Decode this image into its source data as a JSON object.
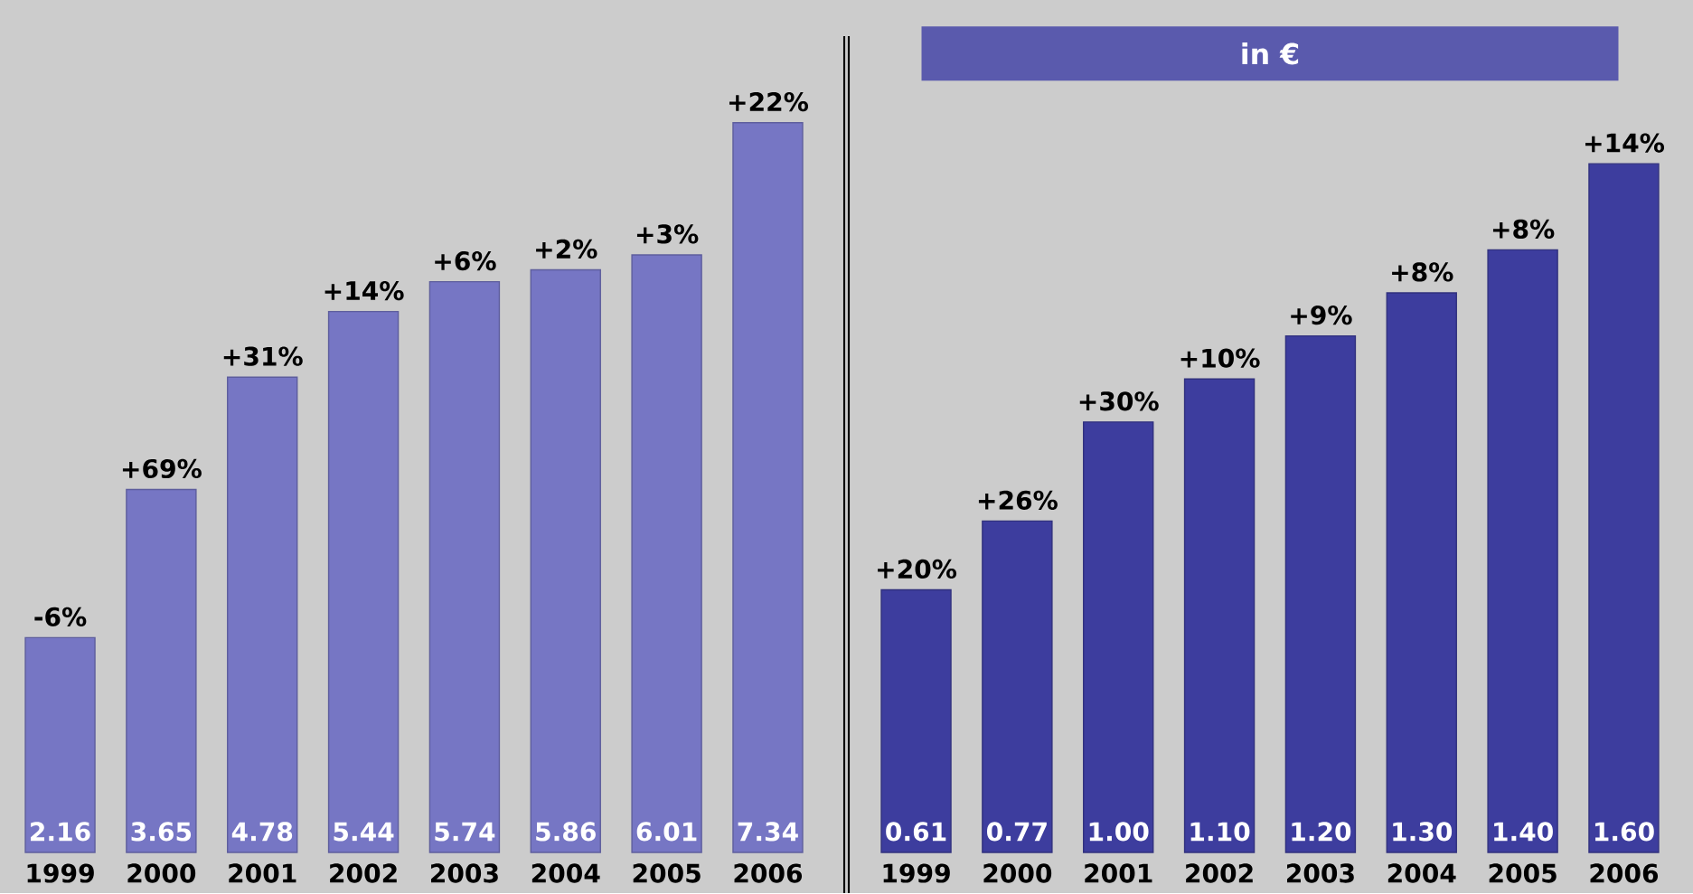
{
  "chart_data": [
    {
      "type": "bar",
      "categories": [
        "1999",
        "2000",
        "2001",
        "2002",
        "2003",
        "2004",
        "2005",
        "2006"
      ],
      "values": [
        2.16,
        3.65,
        4.78,
        5.44,
        5.74,
        5.86,
        6.01,
        7.34
      ],
      "color": "#7676c4",
      "value_labels": [
        "2.16",
        "3.65",
        "4.78",
        "5.44",
        "5.74",
        "5.86",
        "6.01",
        "7.34"
      ],
      "annotations": [
        {
          "text": "-6%",
          "x": "1999",
          "y": 2.16
        },
        {
          "text": "+69%",
          "x": "2000",
          "y": 3.65
        },
        {
          "text": "+31%",
          "x": "2001",
          "y": 4.78
        },
        {
          "text": "+14%",
          "x": "2002",
          "y": 5.44
        },
        {
          "text": "+6%",
          "x": "2003",
          "y": 5.74
        },
        {
          "text": "+2%",
          "x": "2004",
          "y": 5.86
        },
        {
          "text": "+3%",
          "x": "2005",
          "y": 6.01
        },
        {
          "text": "+22%",
          "x": "2006",
          "y": 7.34
        }
      ]
    },
    {
      "type": "bar",
      "title": "in €",
      "categories": [
        "1999",
        "2000",
        "2001",
        "2002",
        "2003",
        "2004",
        "2005",
        "2006"
      ],
      "values": [
        0.61,
        0.77,
        1.0,
        1.1,
        1.2,
        1.3,
        1.4,
        1.6
      ],
      "color": "#3d3d9e",
      "value_labels": [
        "0.61",
        "0.77",
        "1.00",
        "1.10",
        "1.20",
        "1.30",
        "1.40",
        "1.60"
      ],
      "annotations": [
        {
          "text": "+20%",
          "x": "1999",
          "y": 0.61
        },
        {
          "text": "+26%",
          "x": "2000",
          "y": 0.77
        },
        {
          "text": "+30%",
          "x": "2001",
          "y": 1.0
        },
        {
          "text": "+10%",
          "x": "2002",
          "y": 1.1
        },
        {
          "text": "+9%",
          "x": "2003",
          "y": 1.2
        },
        {
          "text": "+8%",
          "x": "2004",
          "y": 1.3
        },
        {
          "text": "+8%",
          "x": "2005",
          "y": 1.4
        },
        {
          "text": "+14%",
          "x": "2006",
          "y": 1.6
        }
      ]
    }
  ]
}
